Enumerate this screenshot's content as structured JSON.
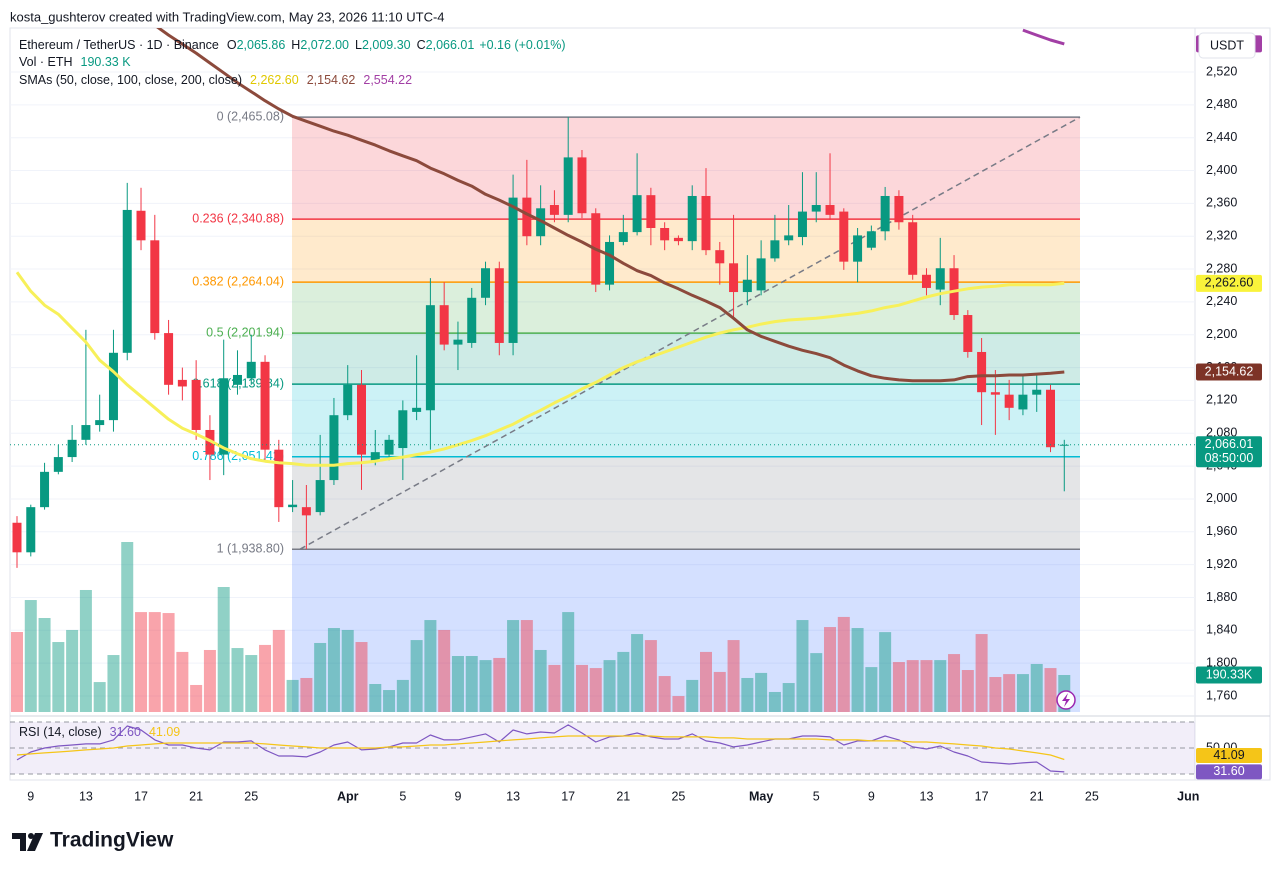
{
  "header": {
    "credit": "kosta_gushterov created with TradingView.com, May 23, 2026 11:10 UTC-4",
    "brand": "TradingView"
  },
  "chart_data": {
    "type": "candlestick",
    "title": "Ethereum / TetherUS · 1D · Binance",
    "legend": [
      {
        "key": "O",
        "label": "2,065.86"
      },
      {
        "key": "H",
        "label": "2,072.00"
      },
      {
        "key": "L",
        "label": "2,009.30"
      },
      {
        "key": "C",
        "label": "2,066.01"
      }
    ],
    "change": "+0.16 (+0.01%)",
    "countdown": "08:50:00",
    "currency": "USDT",
    "up_color": "#089981",
    "down_color": "#f23645",
    "grid": true,
    "categories": [
      null,
      "9",
      null,
      null,
      null,
      "13",
      null,
      null,
      null,
      "17",
      null,
      null,
      null,
      "21",
      null,
      null,
      null,
      "25",
      null,
      null,
      null,
      null,
      null,
      null,
      "Apr",
      null,
      null,
      null,
      "5",
      null,
      null,
      null,
      "9",
      null,
      null,
      null,
      "13",
      null,
      null,
      null,
      "17",
      null,
      null,
      null,
      "21",
      null,
      null,
      null,
      "25",
      null,
      null,
      null,
      null,
      null,
      "May",
      null,
      null,
      null,
      "5",
      null,
      null,
      null,
      "9",
      null,
      null,
      null,
      "13",
      null,
      null,
      null,
      "17",
      null,
      null,
      null,
      "21",
      null,
      null,
      null,
      "25",
      null,
      null,
      null,
      null,
      null,
      null,
      "Jun"
    ],
    "open": [
      1971,
      1935,
      1990,
      2033,
      2051,
      2072,
      2090,
      2096,
      2178,
      2351,
      2315,
      2202,
      2145,
      2145,
      2084,
      2054,
      2139,
      2147,
      2167,
      2060,
      1990,
      1990,
      1984,
      2023,
      2102,
      2139,
      2047,
      2054,
      2062,
      2106,
      2108,
      2236,
      2188,
      2190,
      2245,
      2281,
      2190,
      2367,
      2320,
      2358,
      2346,
      2416,
      2348,
      2261,
      2313,
      2325,
      2370,
      2330,
      2318,
      2314,
      2369,
      2303,
      2287,
      2252,
      2254,
      2293,
      2315,
      2319,
      2350,
      2358,
      2350,
      2289,
      2306,
      2326,
      2369,
      2337,
      2273,
      2255,
      2281,
      2224,
      2179,
      2130,
      2127,
      2109,
      2127,
      2133,
      2065.86,
      null,
      null,
      null,
      null,
      null,
      null,
      null,
      null,
      null
    ],
    "high": [
      1979,
      1993,
      2044,
      2066,
      2090,
      2206,
      2127,
      2206,
      2385,
      2379,
      2346,
      2218,
      2160,
      2169,
      2102,
      2194,
      2181,
      2200,
      2175,
      2072,
      2023,
      2017,
      2078,
      2123,
      2163,
      2157,
      2084,
      2078,
      2120,
      2175,
      2269,
      2264,
      2216,
      2257,
      2289,
      2289,
      2395,
      2413,
      2382,
      2376,
      2465.08,
      2425,
      2354,
      2321,
      2346,
      2421,
      2379,
      2337,
      2321,
      2382,
      2403,
      2313,
      2346,
      2297,
      2315,
      2346,
      2358,
      2398,
      2398,
      2421,
      2354,
      2330,
      2333,
      2380,
      2376,
      2346,
      2281,
      2318,
      2297,
      2230,
      2196,
      2157,
      2145,
      2151,
      2151,
      2139,
      2072,
      null,
      null,
      null,
      null,
      null,
      null,
      null,
      null,
      null
    ],
    "low": [
      1916,
      1930,
      1987,
      2030,
      2045,
      2066,
      2082,
      2082,
      2169,
      2303,
      2194,
      2127,
      2120,
      2072,
      2023,
      2029,
      2127,
      2139,
      2047,
      1972,
      1984,
      1938.8,
      1980,
      2017,
      2096,
      2011,
      2041,
      2047,
      2023,
      2096,
      2060,
      2181,
      2157,
      2184,
      2236,
      2175,
      2175,
      2309,
      2309,
      2337,
      2337,
      2342,
      2252,
      2254,
      2309,
      2321,
      2309,
      2303,
      2309,
      2303,
      2297,
      2261,
      2218,
      2236,
      2248,
      2289,
      2309,
      2309,
      2337,
      2340,
      2279,
      2264,
      2303,
      2315,
      2328,
      2267,
      2248,
      2236,
      2218,
      2172,
      2090,
      2078,
      2096,
      2102,
      2106,
      2057,
      2009.3,
      null,
      null,
      null,
      null,
      null,
      null,
      null,
      null,
      null
    ],
    "close": [
      1935,
      1990,
      2033,
      2051,
      2072,
      2090,
      2096,
      2178,
      2352,
      2315,
      2202,
      2139,
      2137,
      2084,
      2054,
      2147,
      2151,
      2167,
      2060,
      1990,
      1993,
      1980,
      2023,
      2102,
      2139,
      2054,
      2057,
      2072,
      2108,
      2111,
      2236,
      2188,
      2194,
      2245,
      2281,
      2190,
      2367,
      2320,
      2354,
      2346,
      2416,
      2348,
      2261,
      2313,
      2325,
      2370,
      2330,
      2315,
      2314,
      2369,
      2303,
      2287,
      2252,
      2267,
      2293,
      2315,
      2321,
      2350,
      2358,
      2346,
      2289,
      2321,
      2326,
      2369,
      2337,
      2273,
      2257,
      2281,
      2224,
      2179,
      2130,
      2127,
      2111,
      2127,
      2133,
      2063,
      2066.01,
      null,
      null,
      null,
      null,
      null,
      null,
      null,
      null,
      null
    ],
    "ylim": [
      1740.5,
      2573.6
    ],
    "yticks": [
      {
        "value": 2520,
        "label": "2,520"
      },
      {
        "value": 2480,
        "label": "2,480"
      },
      {
        "value": 2440,
        "label": "2,440"
      },
      {
        "value": 2400,
        "label": "2,400"
      },
      {
        "value": 2360,
        "label": "2,360"
      },
      {
        "value": 2320,
        "label": "2,320"
      },
      {
        "value": 2280,
        "label": "2,280"
      },
      {
        "value": 2240,
        "label": "2,240"
      },
      {
        "value": 2200,
        "label": "2,200"
      },
      {
        "value": 2160,
        "label": "2,160"
      },
      {
        "value": 2120,
        "label": "2,120"
      },
      {
        "value": 2080,
        "label": "2,080"
      },
      {
        "value": 2040,
        "label": "2,040"
      },
      {
        "value": 2000,
        "label": "2,000"
      },
      {
        "value": 1960,
        "label": "1,960"
      },
      {
        "value": 1920,
        "label": "1,920"
      },
      {
        "value": 1880,
        "label": "1,880"
      },
      {
        "value": 1840,
        "label": "1,840"
      },
      {
        "value": 1800,
        "label": "1,800"
      },
      {
        "value": 1760,
        "label": "1,760"
      }
    ],
    "volume": {
      "title": "Vol · ETH",
      "legend_label": "190.33 K",
      "axis_label": "190.33K",
      "values": [
        411.5,
        576,
        483.5,
        360,
        422,
        627.6,
        154,
        293,
        874.5,
        514,
        514,
        509,
        309,
        139,
        319,
        643,
        329,
        293,
        345,
        422,
        165,
        175,
        355,
        432,
        422,
        360,
        144,
        113,
        165,
        370,
        473,
        422,
        288,
        288,
        267,
        278,
        473,
        473,
        319,
        242,
        514,
        242,
        226,
        267,
        309,
        401,
        370,
        185,
        82,
        165,
        309,
        206,
        370,
        175,
        201,
        103,
        149,
        473,
        303,
        437,
        489,
        432,
        231,
        411,
        257,
        267,
        267,
        267,
        298,
        216,
        401,
        180,
        195,
        195,
        247,
        226,
        190.33,
        null,
        null,
        null,
        null,
        null,
        null,
        null,
        null,
        null
      ]
    },
    "sma": {
      "title": "SMAs (50, close, 100, close, 200, close)",
      "series": [
        {
          "color": "#f7f05a",
          "label_color": "#f9f33b",
          "last_label": "2,262.60",
          "values": [
            2276,
            2253,
            2236,
            2225,
            2208,
            2191,
            2169,
            2155,
            2139,
            2125,
            2111,
            2097,
            2086,
            2079,
            2071,
            2062,
            2055,
            2049,
            2046,
            2044,
            2043,
            2041,
            2041,
            2041,
            2043,
            2044,
            2046,
            2049,
            2051,
            2054,
            2057,
            2061,
            2066,
            2071,
            2077,
            2084,
            2091,
            2100,
            2108,
            2117,
            2125,
            2134,
            2142,
            2151,
            2160,
            2167,
            2173,
            2179,
            2185,
            2191,
            2197,
            2202,
            2206,
            2209,
            2213,
            2216,
            2218,
            2219,
            2220,
            2222,
            2224,
            2226,
            2229,
            2233,
            2236,
            2241,
            2246,
            2250,
            2253,
            2256,
            2258,
            2259,
            2261,
            2261,
            2261,
            2261,
            2262.6,
            null,
            null,
            null,
            null,
            null,
            null,
            null,
            null,
            null
          ]
        },
        {
          "color": "#8c4a3c",
          "label_color": "#7d3327",
          "last_label": "2,154.62",
          "values": [
            null,
            null,
            null,
            null,
            null,
            null,
            null,
            null,
            null,
            null,
            2577,
            2565,
            2554,
            2543,
            2531,
            2519,
            2507,
            2496,
            2485,
            2475,
            2466,
            2460,
            2454,
            2448,
            2443,
            2437,
            2431,
            2424,
            2418,
            2412,
            2403,
            2396,
            2388,
            2381,
            2371,
            2364,
            2356,
            2347,
            2339,
            2330,
            2321,
            2313,
            2304,
            2297,
            2287,
            2278,
            2272,
            2263,
            2256,
            2248,
            2241,
            2233,
            2220,
            2206,
            2198,
            2192,
            2186,
            2181,
            2177,
            2172,
            2163,
            2156,
            2150,
            2147,
            2145,
            2144,
            2144,
            2144,
            2145,
            2149,
            2150,
            2150,
            2151,
            2151,
            2152,
            2153,
            2154.62,
            null,
            null,
            null,
            null,
            null,
            null,
            null,
            null,
            null
          ]
        },
        {
          "color": "#a23fa5",
          "label_color": "#a23fa5",
          "last_label": "2,554.22",
          "values": [
            null,
            null,
            null,
            null,
            null,
            null,
            null,
            null,
            null,
            null,
            null,
            null,
            null,
            null,
            null,
            null,
            null,
            null,
            null,
            null,
            null,
            null,
            null,
            null,
            null,
            null,
            null,
            null,
            null,
            null,
            null,
            null,
            null,
            null,
            null,
            null,
            null,
            null,
            null,
            null,
            null,
            null,
            null,
            null,
            null,
            null,
            null,
            null,
            null,
            null,
            null,
            null,
            null,
            null,
            null,
            null,
            null,
            null,
            null,
            null,
            null,
            null,
            null,
            null,
            null,
            null,
            null,
            null,
            null,
            null,
            null,
            null,
            null,
            2571,
            2565,
            2559,
            2554.22,
            null,
            null,
            null,
            null,
            null,
            null,
            null,
            null,
            null
          ]
        }
      ]
    },
    "fib": {
      "levels": [
        {
          "value": 2465.08,
          "label": "0 (2,465.08)",
          "color": "#787b86",
          "fill": "rgba(242,54,69,0.2)"
        },
        {
          "value": 2340.88,
          "label": "0.236 (2,340.88)",
          "color": "#f23645",
          "fill": "rgba(255,152,0,0.2)"
        },
        {
          "value": 2264.04,
          "label": "0.382 (2,264.04)",
          "color": "#ff9800",
          "fill": "rgba(76,175,80,0.2)"
        },
        {
          "value": 2201.94,
          "label": "0.5 (2,201.94)",
          "color": "#4caf50",
          "fill": "rgba(8,153,129,0.2)"
        },
        {
          "value": 2139.84,
          "label": "0.618 (2,139.84)",
          "color": "#089981",
          "fill": "rgba(0,188,212,0.2)"
        },
        {
          "value": 2051.42,
          "label": "0.786 (2,051.42)",
          "color": "#00bcd4",
          "fill": "rgba(120,123,134,0.2)"
        },
        {
          "value": 1938.8,
          "label": "1 (1,938.80)",
          "color": "#787b86",
          "fill": "rgba(41,98,255,0.2)"
        }
      ]
    },
    "rsi": {
      "title": "RSI (14, close)",
      "ylim": [
        26.9,
        71.5
      ],
      "yticks": [
        {
          "value": 50,
          "label": "50.00"
        }
      ],
      "bands": [
        70,
        50,
        30
      ],
      "series": [
        {
          "color": "#7e57c2",
          "last_label": "31.60",
          "values": [
            40.8,
            46.9,
            50,
            51.5,
            52.3,
            53.1,
            53.1,
            56.2,
            66.9,
            63.8,
            56.2,
            52.3,
            52.3,
            50,
            48.5,
            54.6,
            54.6,
            55.4,
            48.5,
            43.8,
            43.8,
            43.1,
            46.9,
            52.3,
            54.6,
            48.5,
            49.2,
            50.8,
            53.8,
            53.8,
            60,
            56.2,
            56.2,
            58.5,
            60.8,
            54.6,
            63.8,
            60.8,
            62.3,
            61.5,
            67.7,
            61.5,
            54.6,
            58.5,
            59.2,
            61.5,
            58.5,
            56.9,
            56.9,
            60.8,
            55.4,
            53.8,
            50.8,
            52.3,
            54.6,
            56.9,
            56.9,
            59.2,
            59.2,
            58.5,
            52.3,
            55.4,
            55.4,
            59.2,
            56.2,
            50.8,
            49.2,
            51.5,
            46.9,
            43.8,
            39.2,
            38.5,
            37.7,
            38.5,
            39.2,
            32.3,
            31.6,
            null,
            null,
            null,
            null,
            null,
            null,
            null,
            null,
            null
          ]
        },
        {
          "color": "#f5c518",
          "last_label": "41.09",
          "values": [
            44.6,
            45.4,
            46.2,
            46.9,
            47.7,
            48.5,
            49.2,
            50,
            51.5,
            52.3,
            53.1,
            53.8,
            53.8,
            53.8,
            53.8,
            53.8,
            53.8,
            53.8,
            53.1,
            52.3,
            51.5,
            50.8,
            50,
            50,
            50,
            50,
            50,
            50.8,
            50.8,
            51.5,
            52.3,
            52.3,
            53.1,
            53.8,
            54.6,
            55.4,
            56.2,
            56.9,
            57.7,
            58.5,
            59.2,
            59.2,
            59.2,
            59.2,
            59.2,
            59.2,
            59.2,
            58.5,
            58.5,
            58.5,
            58.5,
            57.7,
            57.7,
            56.9,
            56.9,
            56.9,
            56.9,
            56.9,
            56.9,
            56.2,
            56.2,
            56.2,
            55.4,
            55.4,
            55.4,
            54.6,
            54.6,
            53.8,
            53.1,
            52.3,
            51.5,
            50,
            49.2,
            47.7,
            46.2,
            44.6,
            41.09,
            null,
            null,
            null,
            null,
            null,
            null,
            null,
            null,
            null
          ]
        }
      ]
    }
  }
}
